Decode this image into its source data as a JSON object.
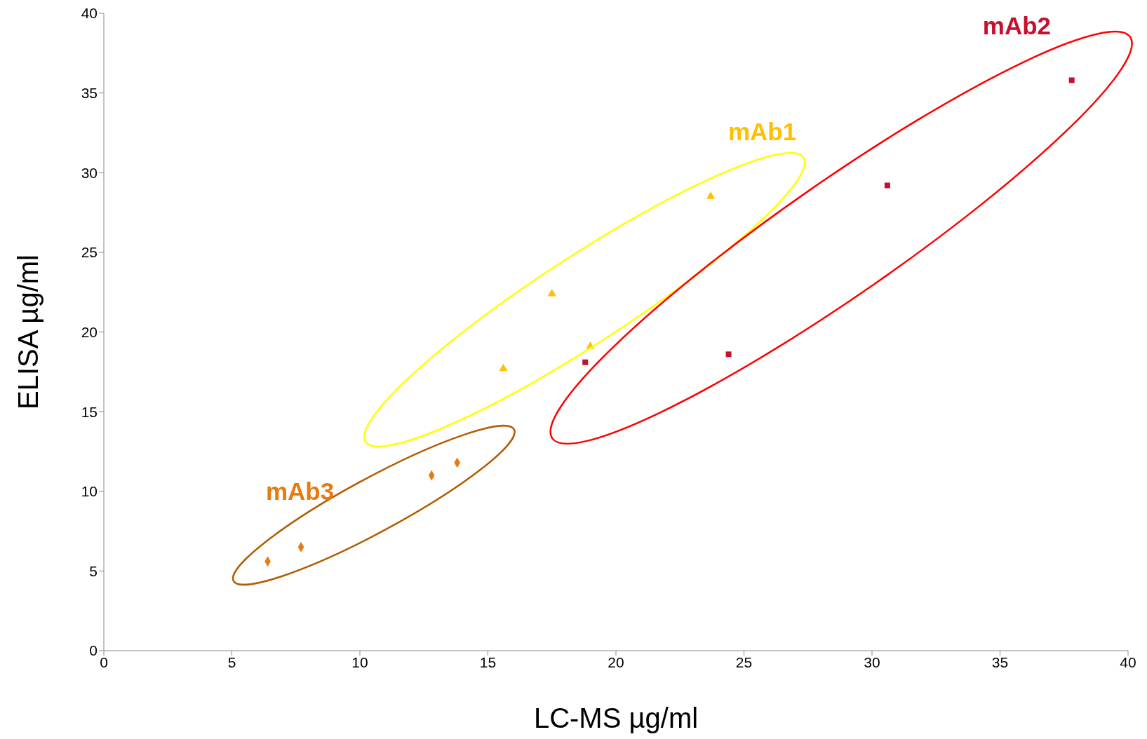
{
  "chart_data": {
    "type": "scatter",
    "xlabel": "LC-MS µg/ml",
    "ylabel": "ELISA µg/ml",
    "xlim": [
      0,
      40
    ],
    "xticks": [
      0,
      5,
      10,
      15,
      20,
      25,
      30,
      35,
      40
    ],
    "ylim": [
      0,
      40
    ],
    "yticks": [
      0,
      5,
      10,
      15,
      20,
      25,
      30,
      35,
      40
    ],
    "grid": false,
    "legend": false,
    "series": [
      {
        "name": "mAb1",
        "color": "#ffc000",
        "marker": "triangle",
        "x": [
          15.6,
          17.5,
          19.0,
          23.7
        ],
        "values": [
          17.7,
          22.4,
          19.1,
          28.5
        ]
      },
      {
        "name": "mAb2",
        "color": "#c8102e",
        "marker": "square",
        "x": [
          18.8,
          24.4,
          30.6,
          37.8
        ],
        "values": [
          18.1,
          18.6,
          29.2,
          35.8
        ]
      },
      {
        "name": "mAb3",
        "color": "#e87a10",
        "marker": "diamond",
        "x": [
          6.4,
          7.7,
          12.8,
          13.8
        ],
        "values": [
          5.6,
          6.5,
          11.0,
          11.8
        ]
      }
    ]
  }
}
